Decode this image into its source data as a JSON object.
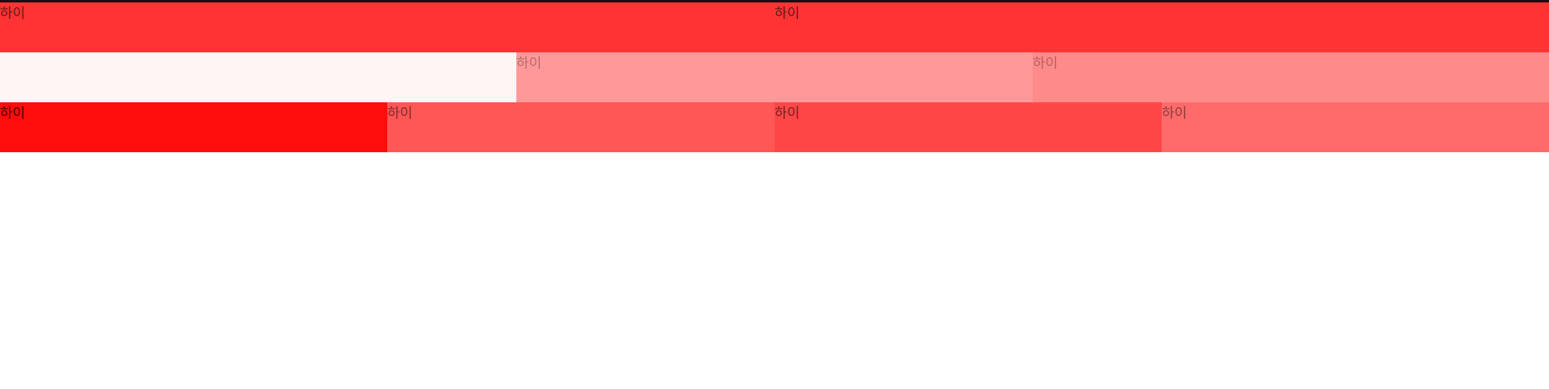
{
  "rows": [
    {
      "cells": [
        {
          "text": "하이",
          "color": "#ff3333",
          "text_color": "#5a1a1a"
        },
        {
          "text": "하이",
          "color": "#ff3333",
          "text_color": "#5a1a1a"
        }
      ]
    },
    {
      "cells": [
        {
          "text": "",
          "color": "#fff5f5",
          "text_color": "#999999"
        },
        {
          "text": "하이",
          "color": "#ff9999",
          "text_color": "#b36b6b"
        },
        {
          "text": "하이",
          "color": "#ff8a8a",
          "text_color": "#b36060"
        }
      ]
    },
    {
      "cells": [
        {
          "text": "하이",
          "color": "#ff0d0d",
          "text_color": "#3a0000"
        },
        {
          "text": "하이",
          "color": "#ff5656",
          "text_color": "#7a2a2a"
        },
        {
          "text": "하이",
          "color": "#ff4747",
          "text_color": "#6e2020"
        },
        {
          "text": "하이",
          "color": "#ff6b6b",
          "text_color": "#8a3a3a"
        }
      ]
    }
  ]
}
